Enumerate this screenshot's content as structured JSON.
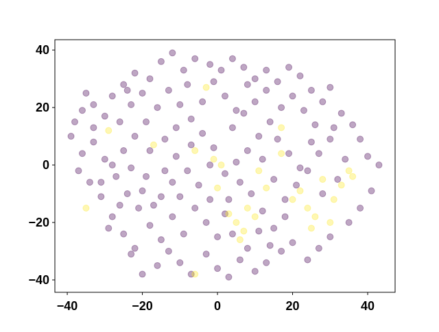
{
  "chart_data": {
    "type": "scatter",
    "xlim": [
      -43.3,
      47.3
    ],
    "ylim": [
      -44.3,
      43.6
    ],
    "xticks": [
      {
        "value": -40,
        "label": "−40"
      },
      {
        "value": -20,
        "label": "−20"
      },
      0,
      20,
      40
    ],
    "yticks": [
      {
        "value": -40,
        "label": "−40"
      },
      {
        "value": -20,
        "label": "−20"
      },
      0,
      20,
      40
    ],
    "series": [
      {
        "color": "#440154",
        "x": [
          -39,
          -38,
          -36,
          -35,
          -33,
          -30,
          -28,
          -25,
          -22,
          -20,
          -18,
          -15,
          -12,
          -9,
          -6,
          -2,
          1,
          4,
          7,
          10,
          13,
          16,
          19,
          22,
          25,
          28,
          30,
          33,
          36,
          38,
          40,
          43,
          41,
          38,
          35,
          30,
          27,
          24,
          20,
          17,
          13,
          10,
          6,
          3,
          0,
          -3,
          -7,
          -10,
          -13,
          -16,
          -20,
          -22,
          -25,
          -28,
          -31,
          -34,
          -37,
          -36,
          -33,
          -30,
          -27,
          -24,
          -21,
          -18,
          -15,
          -12,
          -9,
          -6,
          -3,
          0,
          3,
          6,
          9,
          12,
          15,
          18,
          21,
          24,
          27,
          30,
          26,
          23,
          20,
          17,
          14,
          11,
          8,
          5,
          2,
          -1,
          -4,
          -7,
          -10,
          -13,
          -16,
          -19,
          -22,
          -25,
          -28,
          -31,
          -26,
          -23,
          -18,
          -14,
          -11,
          -8,
          -5,
          -2,
          4,
          7,
          10,
          13,
          16,
          19,
          22,
          25,
          28,
          32,
          34,
          31,
          -12,
          -15,
          -19,
          -23,
          -26,
          -29,
          -23,
          -17,
          -10,
          -7,
          -4,
          -1,
          2,
          5,
          8,
          11,
          14,
          8,
          2,
          -2,
          12,
          15,
          18,
          4,
          -8,
          -11,
          -14,
          -20,
          -24,
          -33
        ],
        "y": [
          10,
          15,
          19,
          25,
          21,
          17,
          24,
          28,
          32,
          25,
          30,
          36,
          39,
          33,
          37,
          35,
          33,
          37,
          34,
          30,
          33,
          29,
          34,
          31,
          26,
          22,
          27,
          18,
          14,
          9,
          3,
          0,
          -9,
          -15,
          -20,
          -25,
          -29,
          -33,
          -27,
          -30,
          -34,
          -37,
          -33,
          -39,
          -36,
          -31,
          -38,
          -34,
          -30,
          -35,
          -38,
          -29,
          -24,
          -18,
          -11,
          -6,
          -2,
          4,
          8,
          2,
          -4,
          -10,
          -15,
          -21,
          -26,
          -18,
          -24,
          -15,
          -20,
          -25,
          -12,
          -6,
          -10,
          -16,
          -22,
          -12,
          -7,
          -2,
          4,
          9,
          14,
          19,
          24,
          20,
          15,
          10,
          5,
          1,
          -3,
          6,
          11,
          16,
          21,
          26,
          20,
          15,
          10,
          5,
          0,
          -6,
          15,
          21,
          5,
          9,
          3,
          -2,
          -7,
          0,
          13,
          18,
          22,
          26,
          9,
          4,
          -1,
          8,
          -10,
          -5,
          2,
          13,
          -6,
          -11,
          -4,
          -1,
          -14,
          -22,
          -31,
          -14,
          -11,
          7,
          22,
          29,
          24,
          19,
          28,
          -23,
          -28,
          -29,
          -17,
          -12,
          2,
          -5,
          -18,
          -24,
          28,
          13,
          -2,
          -9,
          26,
          13
        ]
      },
      {
        "color": "#fde725",
        "x": [
          -35,
          -29,
          -17,
          -6,
          -3,
          0,
          -1,
          3,
          5,
          7,
          8,
          10,
          6,
          11,
          17,
          17,
          20,
          22,
          24,
          26,
          28,
          30,
          31,
          33,
          35,
          36,
          25,
          13,
          -6,
          1
        ],
        "y": [
          -15,
          12,
          7,
          -38,
          27,
          -8,
          2,
          -17,
          -20,
          -23,
          -15,
          -18,
          -26,
          -2,
          4,
          13,
          -12,
          -9,
          -15,
          -18,
          -5,
          -20,
          -12,
          -7,
          -2,
          -4,
          -22,
          -8,
          5,
          0
        ]
      }
    ]
  }
}
